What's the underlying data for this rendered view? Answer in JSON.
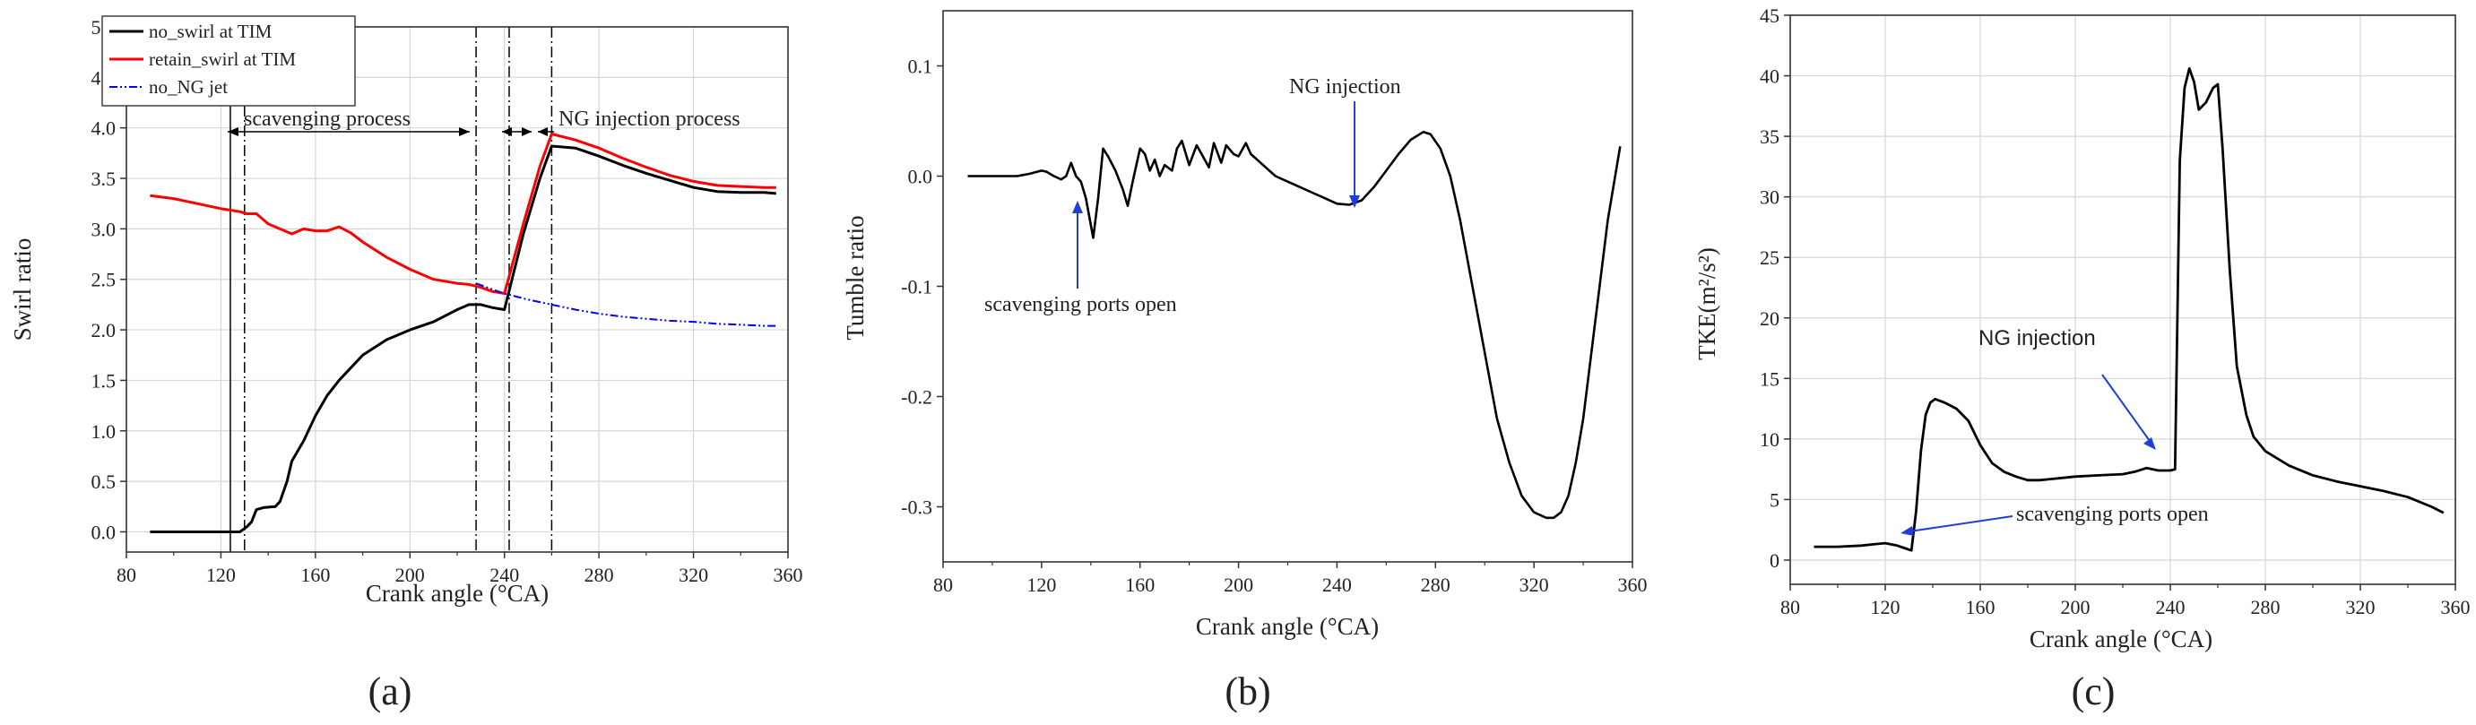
{
  "figure": {
    "panel_labels": [
      "(a)",
      "(b)",
      "(c)"
    ]
  },
  "colors": {
    "no_swirl": "#000000",
    "retain_swirl": "#ff0000",
    "no_NG": "#0000ff",
    "arrow_blue": "#1f3fd8",
    "grid": "#d6d6d6"
  },
  "chart_data": [
    {
      "type": "line",
      "panel": "(a)",
      "xlabel": "Crank angle (°CA)",
      "ylabel": "Swirl ratio",
      "xlim": [
        80,
        360
      ],
      "ylim": [
        -0.2,
        5.0
      ],
      "xticks": [
        80,
        120,
        160,
        200,
        240,
        280,
        320,
        360
      ],
      "yticks": [
        0.0,
        0.5,
        1.0,
        1.5,
        2.0,
        2.5,
        3.0,
        3.5,
        4.0,
        4.5,
        5.0
      ],
      "ytick_labels": [
        "0.0",
        "0.5",
        "1.0",
        "1.5",
        "2.0",
        "2.5",
        "3.0",
        "3.5",
        "4.0",
        "4.5",
        "5.0"
      ],
      "grid": true,
      "legend_position": "top-left",
      "series": [
        {
          "name": "no_swirl at TIM",
          "color": "#000000",
          "x": [
            90,
            100,
            110,
            120,
            128,
            131,
            133,
            135,
            138,
            143,
            145,
            148,
            150,
            155,
            160,
            165,
            170,
            180,
            190,
            200,
            210,
            220,
            225,
            230,
            235,
            240,
            248,
            255,
            260,
            270,
            280,
            290,
            300,
            310,
            320,
            330,
            340,
            350,
            355
          ],
          "y": [
            0.0,
            0.0,
            0.0,
            0.0,
            0.0,
            0.05,
            0.1,
            0.22,
            0.24,
            0.25,
            0.3,
            0.5,
            0.7,
            0.9,
            1.15,
            1.35,
            1.5,
            1.75,
            1.9,
            2.0,
            2.08,
            2.2,
            2.25,
            2.25,
            2.22,
            2.2,
            2.95,
            3.5,
            3.82,
            3.8,
            3.72,
            3.63,
            3.55,
            3.48,
            3.41,
            3.37,
            3.36,
            3.36,
            3.35
          ]
        },
        {
          "name": "retain_swirl at TIM",
          "color": "#ff0000",
          "x": [
            90,
            100,
            110,
            120,
            128,
            131,
            135,
            140,
            145,
            150,
            155,
            160,
            165,
            170,
            175,
            180,
            190,
            200,
            210,
            220,
            225,
            230,
            235,
            240,
            248,
            255,
            260,
            270,
            280,
            290,
            300,
            310,
            320,
            330,
            340,
            350,
            355
          ],
          "y": [
            3.33,
            3.3,
            3.25,
            3.2,
            3.17,
            3.15,
            3.15,
            3.05,
            3.0,
            2.95,
            3.0,
            2.98,
            2.98,
            3.02,
            2.96,
            2.87,
            2.72,
            2.6,
            2.5,
            2.46,
            2.45,
            2.42,
            2.38,
            2.36,
            3.05,
            3.62,
            3.94,
            3.88,
            3.8,
            3.7,
            3.61,
            3.53,
            3.47,
            3.43,
            3.42,
            3.41,
            3.41
          ]
        },
        {
          "name": "no_NG jet",
          "color": "#0000ff",
          "x": [
            228,
            235,
            240,
            250,
            260,
            270,
            280,
            290,
            300,
            310,
            320,
            330,
            340,
            350,
            355
          ],
          "y": [
            2.46,
            2.4,
            2.36,
            2.3,
            2.25,
            2.2,
            2.16,
            2.13,
            2.11,
            2.09,
            2.08,
            2.06,
            2.05,
            2.04,
            2.04
          ]
        }
      ],
      "vlines": [
        {
          "x": 124,
          "style": "solid"
        },
        {
          "x": 130,
          "style": "dashdot"
        },
        {
          "x": 228,
          "style": "dashdot"
        },
        {
          "x": 242,
          "style": "dashdot"
        },
        {
          "x": 260,
          "style": "dashdot"
        }
      ],
      "annotations": [
        {
          "text": "scavenging process",
          "x1": 130,
          "x2": 228,
          "y": 4.0
        },
        {
          "text": "",
          "x1": 242,
          "x2": 260,
          "y": 4.0
        },
        {
          "text": "NG injection process",
          "x1": 260,
          "x2": 355,
          "y": 4.0
        }
      ]
    },
    {
      "type": "line",
      "panel": "(b)",
      "xlabel": "Crank angle (°CA)",
      "ylabel": "Tumble ratio",
      "xlim": [
        80,
        360
      ],
      "ylim": [
        -0.35,
        0.15
      ],
      "xticks": [
        80,
        120,
        160,
        200,
        240,
        280,
        320,
        360
      ],
      "yticks": [
        -0.3,
        -0.2,
        -0.1,
        0.0,
        0.1
      ],
      "ytick_labels": [
        "-0.3",
        "-0.2",
        "-0.1",
        "0.0",
        "0.1"
      ],
      "grid": false,
      "series": [
        {
          "name": "",
          "color": "#000000",
          "x": [
            90,
            100,
            110,
            115,
            120,
            122,
            125,
            128,
            130,
            132,
            134,
            136,
            138,
            141,
            143,
            145,
            147,
            150,
            153,
            155,
            157,
            160,
            162,
            164,
            166,
            168,
            170,
            173,
            175,
            177,
            180,
            183,
            185,
            188,
            190,
            193,
            195,
            198,
            200,
            203,
            205,
            210,
            215,
            220,
            225,
            230,
            235,
            240,
            245,
            250,
            255,
            260,
            265,
            270,
            275,
            278,
            282,
            286,
            290,
            295,
            300,
            305,
            310,
            315,
            320,
            325,
            328,
            331,
            334,
            337,
            340,
            345,
            350,
            355
          ],
          "y": [
            0.0,
            0.0,
            0.0,
            0.002,
            0.005,
            0.004,
            0.0,
            -0.003,
            0.0,
            0.012,
            0.0,
            -0.005,
            -0.02,
            -0.056,
            -0.02,
            0.025,
            0.018,
            0.005,
            -0.012,
            -0.027,
            -0.005,
            0.025,
            0.02,
            0.005,
            0.015,
            0.0,
            0.01,
            0.005,
            0.025,
            0.032,
            0.01,
            0.028,
            0.02,
            0.008,
            0.03,
            0.012,
            0.028,
            0.02,
            0.018,
            0.03,
            0.02,
            0.01,
            0.0,
            -0.005,
            -0.01,
            -0.015,
            -0.02,
            -0.025,
            -0.026,
            -0.022,
            -0.01,
            0.005,
            0.02,
            0.033,
            0.04,
            0.038,
            0.025,
            0.0,
            -0.04,
            -0.1,
            -0.16,
            -0.22,
            -0.26,
            -0.29,
            -0.305,
            -0.31,
            -0.31,
            -0.305,
            -0.29,
            -0.26,
            -0.22,
            -0.13,
            -0.04,
            0.027
          ]
        }
      ],
      "annotations": [
        {
          "text": "NG injection",
          "x": 247,
          "y": -0.025
        },
        {
          "text": "scavenging ports open",
          "x": 133,
          "y": -0.01
        }
      ]
    },
    {
      "type": "line",
      "panel": "(c)",
      "xlabel": "Crank angle (°CA)",
      "ylabel": "TKE(m²/s²)",
      "xlim": [
        80,
        360
      ],
      "ylim": [
        -2,
        45
      ],
      "xticks": [
        80,
        120,
        160,
        200,
        240,
        280,
        320,
        360
      ],
      "yticks": [
        0,
        5,
        10,
        15,
        20,
        25,
        30,
        35,
        40,
        45
      ],
      "ytick_labels": [
        "0",
        "5",
        "10",
        "15",
        "20",
        "25",
        "30",
        "35",
        "40",
        "45"
      ],
      "grid": true,
      "series": [
        {
          "name": "",
          "color": "#000000",
          "x": [
            90,
            100,
            110,
            115,
            120,
            125,
            128,
            131,
            133,
            135,
            137,
            139,
            141,
            145,
            150,
            155,
            160,
            165,
            170,
            175,
            180,
            185,
            190,
            200,
            210,
            220,
            225,
            230,
            235,
            240,
            242,
            243,
            244,
            246,
            248,
            250,
            252,
            255,
            258,
            260,
            262,
            265,
            268,
            272,
            275,
            280,
            290,
            300,
            310,
            320,
            330,
            340,
            350,
            355
          ],
          "y": [
            1.1,
            1.1,
            1.2,
            1.3,
            1.4,
            1.2,
            1.0,
            0.8,
            4.0,
            9.0,
            12.0,
            13.0,
            13.3,
            13.0,
            12.5,
            11.5,
            9.5,
            8.0,
            7.3,
            6.9,
            6.6,
            6.6,
            6.7,
            6.9,
            7.0,
            7.1,
            7.3,
            7.6,
            7.4,
            7.4,
            7.5,
            20.0,
            33.0,
            39.0,
            40.6,
            39.5,
            37.2,
            37.8,
            39.0,
            39.3,
            34.0,
            24.0,
            16.0,
            12.0,
            10.2,
            9.0,
            7.8,
            7.0,
            6.5,
            6.1,
            5.7,
            5.2,
            4.4,
            3.9
          ]
        }
      ],
      "annotations": [
        {
          "text": "NG injection",
          "x": 235,
          "y": 7.5
        },
        {
          "text": "scavenging ports open",
          "x": 129,
          "y": 0.8
        }
      ]
    }
  ]
}
